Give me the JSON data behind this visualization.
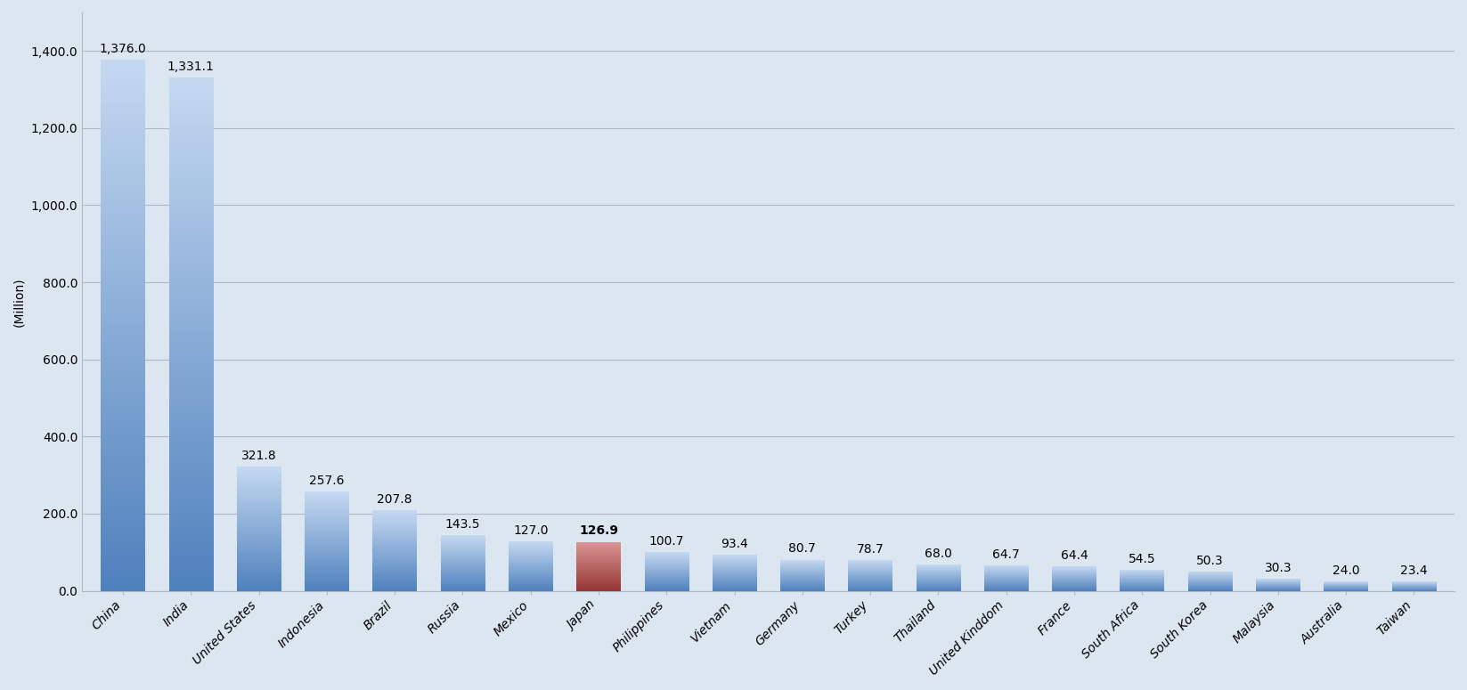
{
  "categories": [
    "China",
    "India",
    "United States",
    "Indonesia",
    "Brazil",
    "Russia",
    "Mexico",
    "Japan",
    "Philippines",
    "Vietnam",
    "Germany",
    "Turkey",
    "Thailand",
    "United Kinddom",
    "France",
    "South Africa",
    "South Korea",
    "Malaysia",
    "Australia",
    "Taiwan"
  ],
  "values": [
    1376.0,
    1331.1,
    321.8,
    257.6,
    207.8,
    143.5,
    127.0,
    126.9,
    100.7,
    93.4,
    80.7,
    78.7,
    68.0,
    64.7,
    64.4,
    54.5,
    50.3,
    30.3,
    24.0,
    23.4
  ],
  "bar_color_top": "#c5d9f1",
  "bar_color_bottom": "#4f81bd",
  "japan_color_top": "#d99594",
  "japan_color_bottom": "#943634",
  "japan_index": 7,
  "ylabel": "(Million)",
  "ylim": [
    0,
    1500
  ],
  "yticks": [
    0.0,
    200.0,
    400.0,
    600.0,
    800.0,
    1000.0,
    1200.0,
    1400.0
  ],
  "background_color": "#dce6f1",
  "plot_bg_color": "#dce6f1",
  "grid_color": "#b0b8c8",
  "title_fontsize": 13,
  "label_fontsize": 10,
  "tick_fontsize": 10,
  "bar_width": 0.65
}
